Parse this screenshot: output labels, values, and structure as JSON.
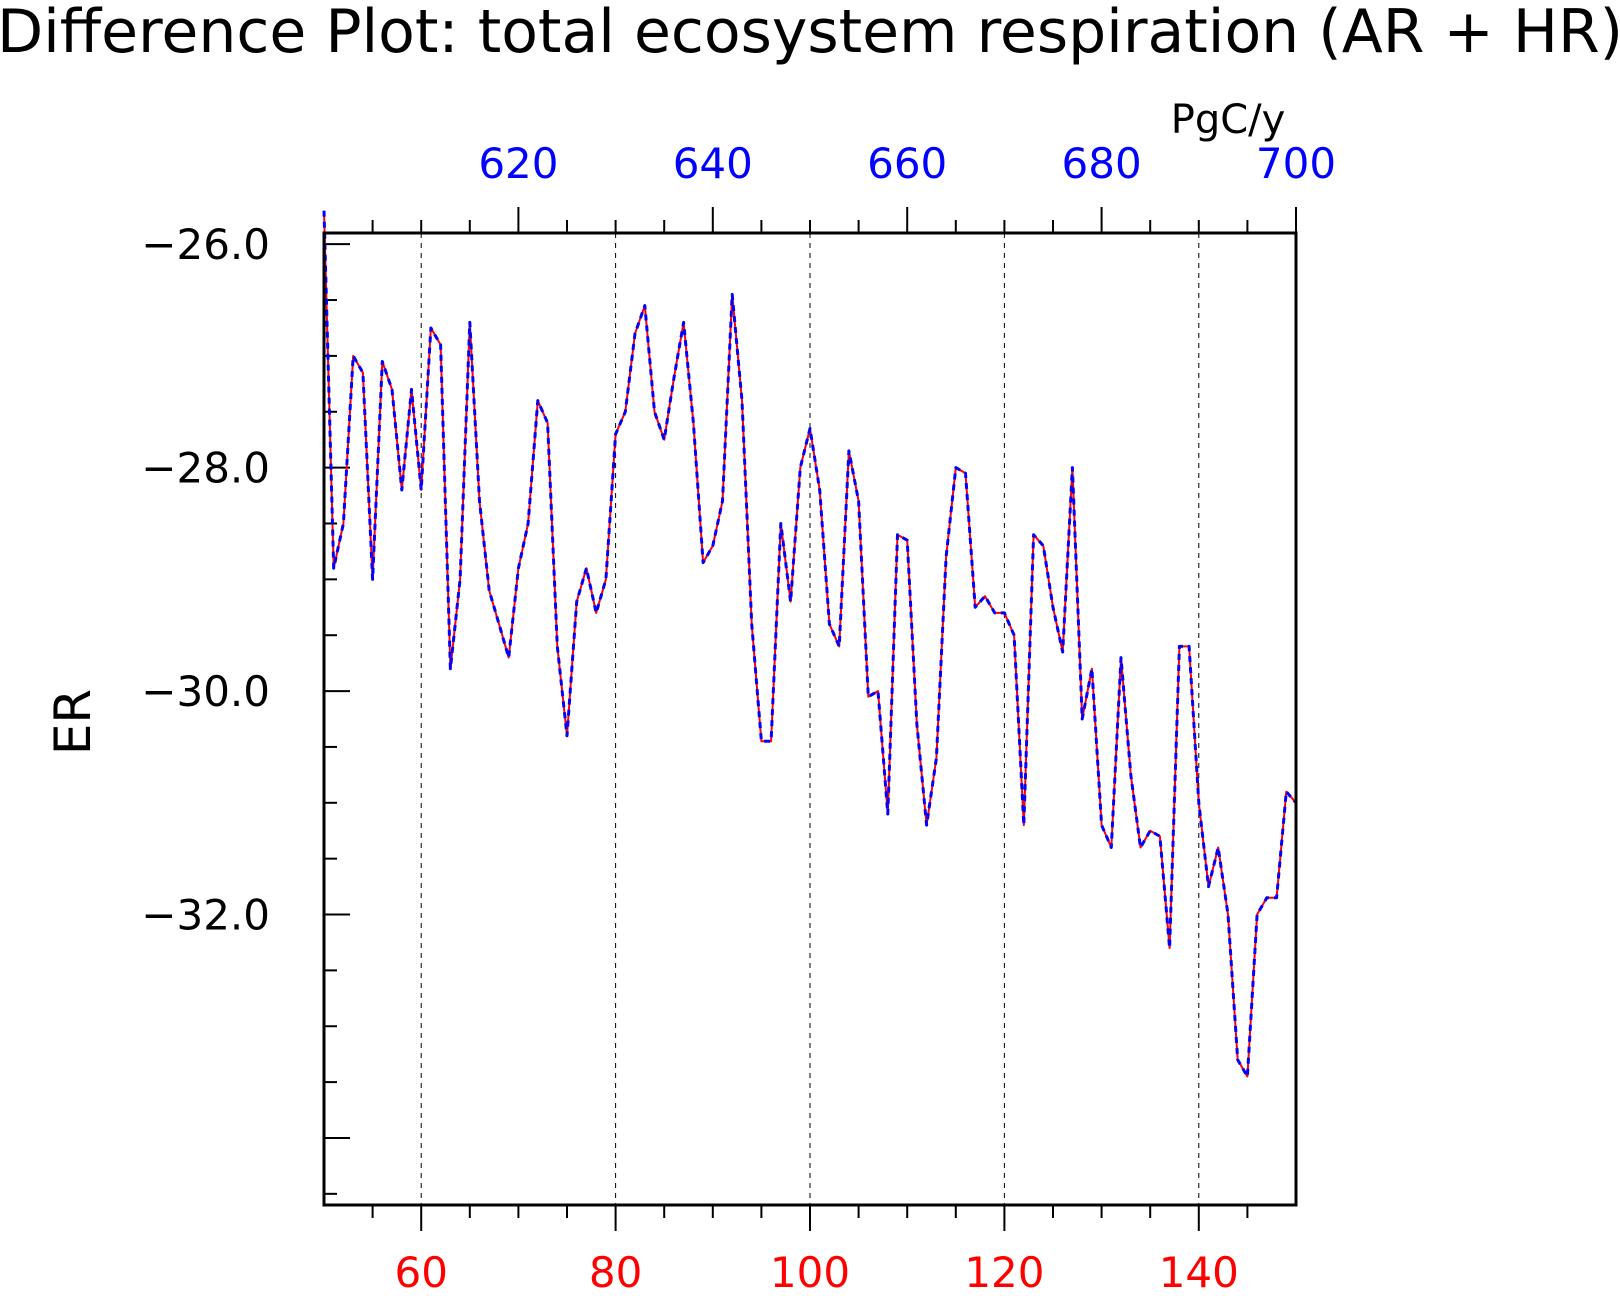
{
  "chart_data": {
    "type": "line",
    "title": "Difference Plot: total ecosystem respiration (AR + HR)",
    "ylabel": "ER",
    "top_axis_unit": "PgC/y",
    "xlim": [
      50,
      150
    ],
    "ylim": [
      -34.6,
      -25.9
    ],
    "top_xlim": [
      600,
      700
    ],
    "y_ticks": [
      -26,
      -28,
      -30,
      -32
    ],
    "y_tick_labels": [
      "−26.0",
      "−28.0",
      "−30.0",
      "−32.0"
    ],
    "bottom_ticks": [
      60,
      80,
      100,
      120,
      140
    ],
    "bottom_tick_labels": [
      "60",
      "80",
      "100",
      "120",
      "140"
    ],
    "top_ticks": [
      620,
      640,
      660,
      680,
      700
    ],
    "top_tick_labels": [
      "620",
      "640",
      "660",
      "680",
      "700"
    ],
    "grid": "x-dashed",
    "colors": {
      "series_a": "#ff0000",
      "series_b": "#0000ff",
      "bottom_ticks": "#ff0000",
      "top_ticks": "#0000ff"
    },
    "x": [
      50,
      51,
      52,
      53,
      54,
      55,
      56,
      57,
      58,
      59,
      60,
      61,
      62,
      63,
      64,
      65,
      66,
      67,
      68,
      69,
      70,
      71,
      72,
      73,
      74,
      75,
      76,
      77,
      78,
      79,
      80,
      81,
      82,
      83,
      84,
      85,
      86,
      87,
      88,
      89,
      90,
      91,
      92,
      93,
      94,
      95,
      96,
      97,
      98,
      99,
      100,
      101,
      102,
      103,
      104,
      105,
      106,
      107,
      108,
      109,
      110,
      111,
      112,
      113,
      114,
      115,
      116,
      117,
      118,
      119,
      120,
      121,
      122,
      123,
      124,
      125,
      126,
      127,
      128,
      129,
      130,
      131,
      132,
      133,
      134,
      135,
      136,
      137,
      138,
      139,
      140,
      141,
      142,
      143,
      144,
      145,
      146,
      147,
      148,
      149,
      150
    ],
    "series": [
      {
        "values": [
          -25.7,
          -28.9,
          -28.5,
          -27.0,
          -27.15,
          -29.0,
          -27.05,
          -27.3,
          -28.2,
          -27.3,
          -28.2,
          -26.75,
          -26.9,
          -29.8,
          -29.0,
          -26.7,
          -28.3,
          -29.1,
          -29.4,
          -29.7,
          -28.9,
          -28.5,
          -27.4,
          -27.6,
          -29.6,
          -30.4,
          -29.2,
          -28.9,
          -29.3,
          -29.0,
          -27.7,
          -27.5,
          -26.8,
          -26.55,
          -27.5,
          -27.75,
          -27.2,
          -26.7,
          -27.6,
          -28.85,
          -28.7,
          -28.3,
          -26.45,
          -27.4,
          -29.4,
          -30.45,
          -30.45,
          -28.5,
          -29.2,
          -28.0,
          -27.65,
          -28.2,
          -29.4,
          -29.6,
          -27.85,
          -28.3,
          -30.05,
          -30.0,
          -31.1,
          -28.6,
          -28.65,
          -30.3,
          -31.2,
          -30.6,
          -28.8,
          -28.0,
          -28.05,
          -29.25,
          -29.15,
          -29.3,
          -29.3,
          -29.5,
          -31.2,
          -28.6,
          -28.7,
          -29.25,
          -29.65,
          -28.0,
          -30.25,
          -29.8,
          -31.2,
          -31.4,
          -29.7,
          -30.75,
          -31.4,
          -31.25,
          -31.3,
          -32.3,
          -29.6,
          -29.6,
          -31.0,
          -31.75,
          -31.4,
          -32.0,
          -33.3,
          -33.45,
          -32.0,
          -31.85,
          -31.85,
          -30.9,
          -31.0
        ]
      },
      {
        "values": [
          -25.7,
          -28.9,
          -28.5,
          -27.0,
          -27.15,
          -29.0,
          -27.05,
          -27.3,
          -28.2,
          -27.3,
          -28.2,
          -26.75,
          -26.9,
          -29.8,
          -29.0,
          -26.7,
          -28.3,
          -29.1,
          -29.4,
          -29.7,
          -28.9,
          -28.5,
          -27.4,
          -27.6,
          -29.6,
          -30.4,
          -29.2,
          -28.9,
          -29.3,
          -29.0,
          -27.7,
          -27.5,
          -26.8,
          -26.55,
          -27.5,
          -27.75,
          -27.2,
          -26.7,
          -27.6,
          -28.85,
          -28.7,
          -28.3,
          -26.45,
          -27.4,
          -29.4,
          -30.45,
          -30.45,
          -28.5,
          -29.2,
          -28.0,
          -27.65,
          -28.2,
          -29.4,
          -29.6,
          -27.85,
          -28.3,
          -30.05,
          -30.0,
          -31.1,
          -28.6,
          -28.65,
          -30.3,
          -31.2,
          -30.6,
          -28.8,
          -28.0,
          -28.05,
          -29.25,
          -29.15,
          -29.3,
          -29.3,
          -29.5,
          -31.2,
          -28.6,
          -28.7,
          -29.25,
          -29.65,
          -28.0,
          -30.25,
          -29.8,
          -31.2,
          -31.4,
          -29.7,
          -30.75,
          -31.4,
          -31.25,
          -31.3,
          -32.3,
          -29.6,
          -29.6,
          -31.0,
          -31.75,
          -31.4,
          -32.0,
          -33.3,
          -33.45,
          -32.0,
          -31.85,
          -31.85,
          -30.9,
          -31.0
        ]
      }
    ]
  }
}
